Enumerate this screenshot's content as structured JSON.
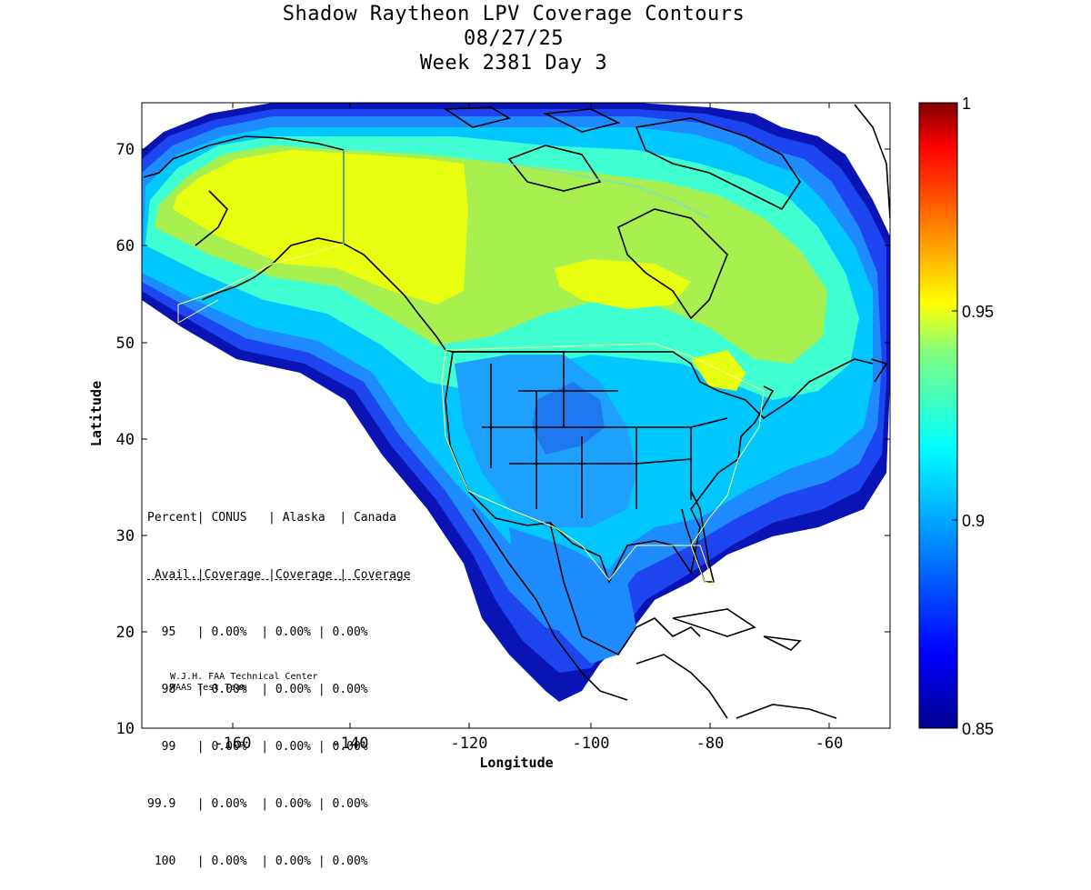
{
  "header": {
    "title": "Shadow Raytheon LPV Coverage Contours",
    "date": "08/27/25",
    "week": "Week 2381 Day 3"
  },
  "map": {
    "xlabel": "Longitude",
    "ylabel": "Latitude",
    "lon_range": [
      -175,
      -50
    ],
    "lat_range": [
      10,
      75
    ],
    "x_ticks": [
      "-160",
      "-140",
      "-120",
      "-100",
      "-80",
      "-60"
    ],
    "y_ticks": [
      "10",
      "20",
      "30",
      "40",
      "50",
      "60",
      "70"
    ]
  },
  "colorbar": {
    "ticks": [
      "0.85",
      "0.9",
      "0.95",
      "1"
    ],
    "range": [
      0.85,
      1.0
    ]
  },
  "stats_table": {
    "header1": "Percent| CONUS   | Alaska  | Canada",
    "header2": " Avail.|Coverage |Coverage | Coverage",
    "rows": [
      "  95   | 0.00%  | 0.00% | 0.00%",
      "  98   | 0.00%  | 0.00% | 0.00%",
      "  99   | 0.00%  | 0.00% | 0.00%",
      "99.9   | 0.00%  | 0.00% | 0.00%",
      " 100   | 0.00%  | 0.00% | 0.00%"
    ]
  },
  "credit": {
    "line1": "W.J.H. FAA Technical Center",
    "line2": "WAAS Test Team"
  }
}
